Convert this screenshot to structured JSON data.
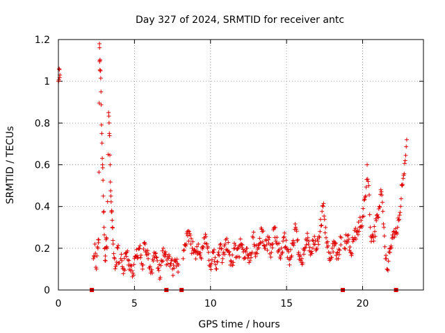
{
  "chart_data": {
    "type": "scatter",
    "title": "Day 327 of 2024, SRMTID for receiver antc",
    "xlabel": "GPS time / hours",
    "ylabel": "SRMTID / TECUs",
    "xlim": [
      0,
      24
    ],
    "ylim": [
      0,
      1.2
    ],
    "xticks": [
      0,
      5,
      10,
      15,
      20
    ],
    "xtick_labels": [
      "0",
      "5",
      "10",
      "15",
      "20"
    ],
    "yticks": [
      0,
      0.2,
      0.4,
      0.6,
      0.8,
      1.0,
      1.2
    ],
    "ytick_labels": [
      "0",
      "0.2",
      "0.4",
      "0.6",
      "0.8",
      "1",
      "1.2"
    ],
    "grid": true,
    "marker": "+",
    "color": "#e00000",
    "baseline_markers_x": [
      2.2,
      7.1,
      8.1,
      18.7,
      22.2
    ],
    "segments": [
      {
        "x": [
          0.0,
          0.05,
          0.1
        ],
        "y": [
          1.0,
          1.06,
          1.03
        ]
      },
      {
        "x": [
          2.3,
          2.4,
          2.5,
          2.6,
          2.65,
          2.7,
          2.72,
          2.75,
          2.8,
          2.85,
          2.9,
          2.95,
          3.0,
          3.05,
          3.1,
          3.15,
          3.2,
          3.3,
          3.35,
          3.4,
          3.45,
          3.5,
          3.55,
          3.6,
          3.7,
          3.8,
          3.9,
          4.0
        ],
        "y": [
          0.15,
          0.22,
          0.1,
          0.2,
          0.24,
          1.18,
          1.1,
          1.05,
          0.95,
          0.75,
          0.6,
          0.45,
          0.3,
          0.2,
          0.14,
          0.25,
          0.2,
          0.85,
          0.75,
          0.6,
          0.45,
          0.38,
          0.3,
          0.22,
          0.15,
          0.12,
          0.2,
          0.13
        ]
      },
      {
        "x": [
          4.1,
          4.3,
          4.5,
          4.7,
          4.9,
          5.1,
          5.3,
          5.5,
          5.7,
          5.9,
          6.1,
          6.3,
          6.5,
          6.7,
          6.9,
          7.1,
          7.3,
          7.5,
          7.7,
          7.9
        ],
        "y": [
          0.15,
          0.1,
          0.18,
          0.12,
          0.08,
          0.16,
          0.2,
          0.12,
          0.22,
          0.15,
          0.09,
          0.18,
          0.14,
          0.06,
          0.2,
          0.12,
          0.16,
          0.1,
          0.14,
          0.12
        ]
      },
      {
        "x": [
          8.2,
          8.4,
          8.6,
          8.8,
          9.0,
          9.2,
          9.4,
          9.6,
          9.8,
          10.0,
          10.2,
          10.4,
          10.6,
          10.8,
          11.0,
          11.2,
          11.4,
          11.6,
          11.8,
          12.0,
          12.2,
          12.4,
          12.6,
          12.8,
          13.0,
          13.2,
          13.4,
          13.6,
          13.8,
          14.0,
          14.2,
          14.4,
          14.6,
          14.8,
          15.0,
          15.2,
          15.4,
          15.6,
          15.8,
          16.0,
          16.2,
          16.4,
          16.6,
          16.8,
          17.0,
          17.2,
          17.4,
          17.6,
          17.8,
          18.0,
          18.2,
          18.4,
          18.6
        ],
        "y": [
          0.15,
          0.22,
          0.28,
          0.2,
          0.18,
          0.22,
          0.15,
          0.25,
          0.2,
          0.12,
          0.18,
          0.1,
          0.2,
          0.15,
          0.24,
          0.18,
          0.12,
          0.2,
          0.16,
          0.22,
          0.15,
          0.2,
          0.14,
          0.25,
          0.18,
          0.22,
          0.28,
          0.2,
          0.24,
          0.18,
          0.3,
          0.22,
          0.15,
          0.25,
          0.2,
          0.12,
          0.22,
          0.3,
          0.18,
          0.15,
          0.2,
          0.25,
          0.18,
          0.22,
          0.2,
          0.28,
          0.4,
          0.25,
          0.15,
          0.2,
          0.22,
          0.15,
          0.25
        ]
      },
      {
        "x": [
          18.8,
          19.0,
          19.2,
          19.4,
          19.6,
          19.8,
          20.0,
          20.2,
          20.3,
          20.4,
          20.5,
          20.6,
          20.8,
          21.0,
          21.1,
          21.2,
          21.3,
          21.4,
          21.5,
          21.6,
          21.8,
          22.0,
          22.3,
          22.5,
          22.6,
          22.7,
          22.8,
          22.9
        ],
        "y": [
          0.2,
          0.26,
          0.18,
          0.24,
          0.28,
          0.3,
          0.35,
          0.45,
          0.6,
          0.5,
          0.3,
          0.25,
          0.28,
          0.35,
          0.4,
          0.48,
          0.42,
          0.3,
          0.15,
          0.1,
          0.18,
          0.25,
          0.3,
          0.4,
          0.5,
          0.55,
          0.62,
          0.72
        ]
      }
    ]
  }
}
